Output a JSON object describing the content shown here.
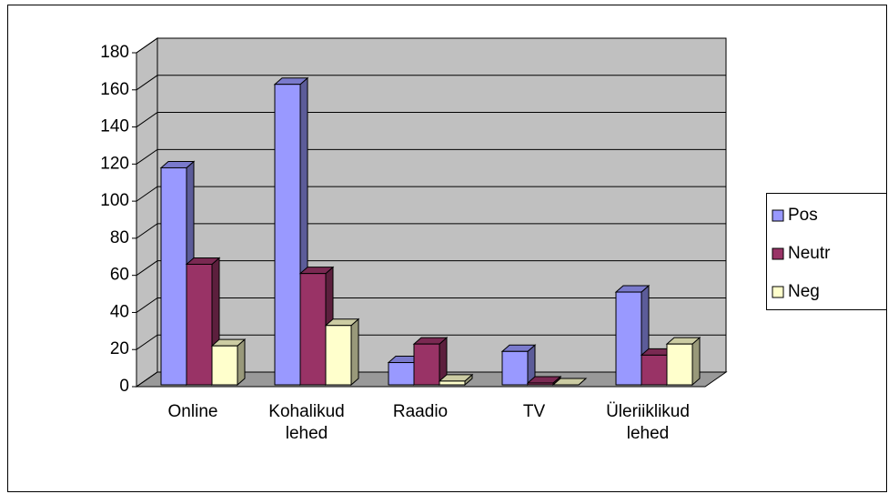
{
  "chart_data": {
    "type": "bar3d",
    "categories": [
      "Online",
      "Kohalikud lehed",
      "Raadio",
      "TV",
      "Üleriiklikud lehed"
    ],
    "series": [
      {
        "name": "Pos",
        "color": "#9999ff",
        "values": [
          117,
          162,
          12,
          18,
          50
        ]
      },
      {
        "name": "Neutr",
        "color": "#993366",
        "values": [
          65,
          60,
          22,
          1,
          16
        ]
      },
      {
        "name": "Neg",
        "color": "#ffffcc",
        "values": [
          21,
          32,
          2,
          0,
          22
        ]
      }
    ],
    "ylim": [
      0,
      180
    ],
    "yticks": [
      0,
      20,
      40,
      60,
      80,
      100,
      120,
      140,
      160,
      180
    ],
    "grid": true,
    "legend": "right"
  }
}
